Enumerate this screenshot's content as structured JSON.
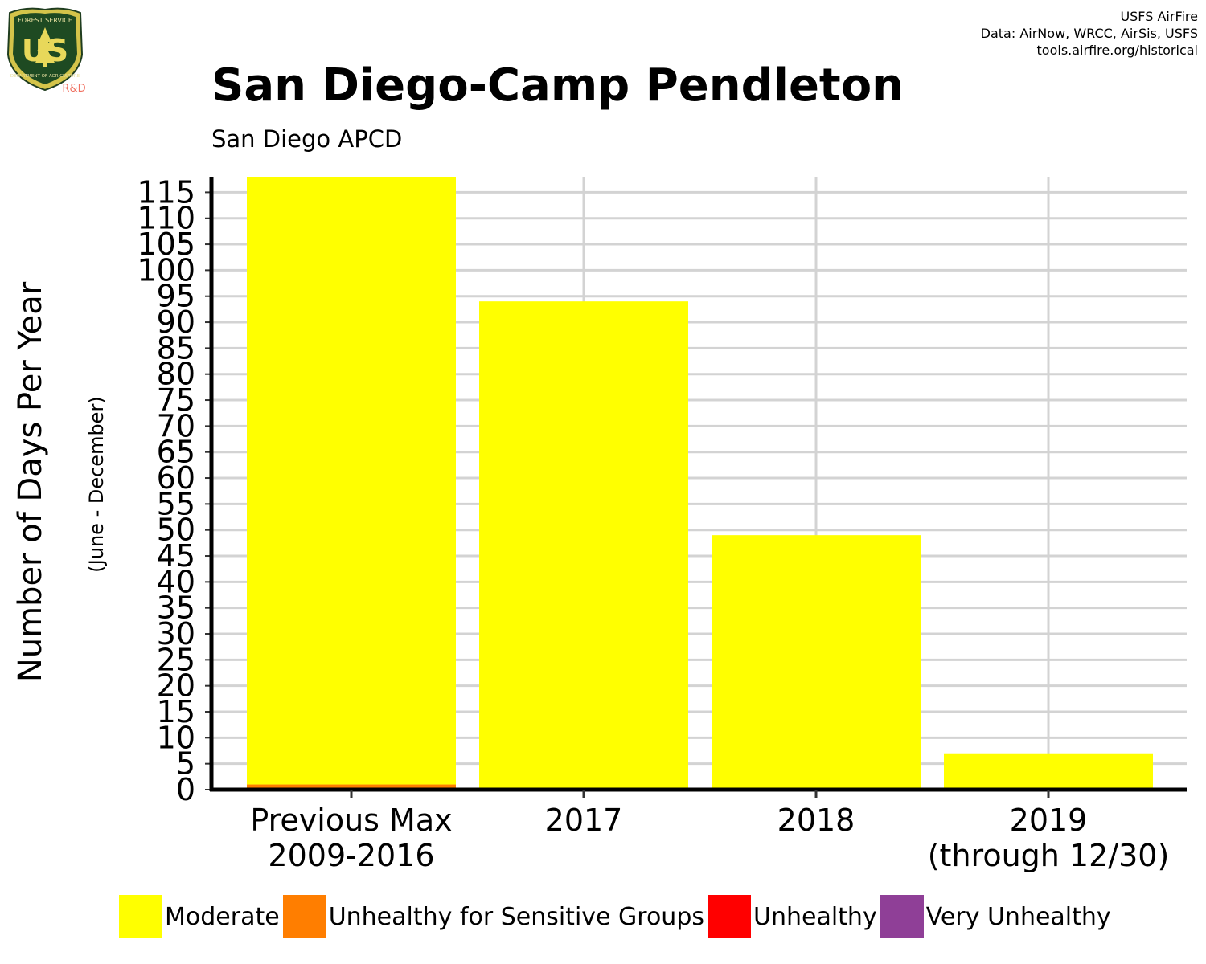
{
  "header": {
    "credits": [
      "USFS AirFire",
      "Data: AirNow, WRCC, AirSis, USFS",
      "tools.airfire.org/historical"
    ],
    "title": "San Diego-Camp Pendleton",
    "subtitle": "San Diego APCD"
  },
  "logo": {
    "top_text": "FOREST SERVICE",
    "main_text": "US",
    "bottom_text": "DEPARTMENT OF AGRICULTURE",
    "badge_text": "R&D"
  },
  "chart_data": {
    "type": "bar",
    "stacked": true,
    "categories": [
      "Previous Max\n2009-2016",
      "2017",
      "2018",
      "2019\n(through 12/30)"
    ],
    "series": [
      {
        "name": "Moderate",
        "color": "#FFFF00",
        "values": [
          117,
          94,
          49,
          7
        ]
      },
      {
        "name": "Unhealthy for Sensitive Groups",
        "color": "#FF7E00",
        "values": [
          1,
          0,
          0,
          0
        ]
      },
      {
        "name": "Unhealthy",
        "color": "#FF0000",
        "values": [
          0,
          0,
          0,
          0
        ]
      },
      {
        "name": "Very Unhealthy",
        "color": "#8F3F97",
        "values": [
          0,
          0,
          0,
          0
        ]
      }
    ],
    "ylabel": "Number of Days Per Year",
    "ylabel_secondary": "(June - December)",
    "ylim": [
      0,
      118
    ],
    "yticks": [
      0,
      5,
      10,
      15,
      20,
      25,
      30,
      35,
      40,
      45,
      50,
      55,
      60,
      65,
      70,
      75,
      80,
      85,
      90,
      95,
      100,
      105,
      110,
      115
    ],
    "grid": true,
    "legend_position": "bottom"
  }
}
